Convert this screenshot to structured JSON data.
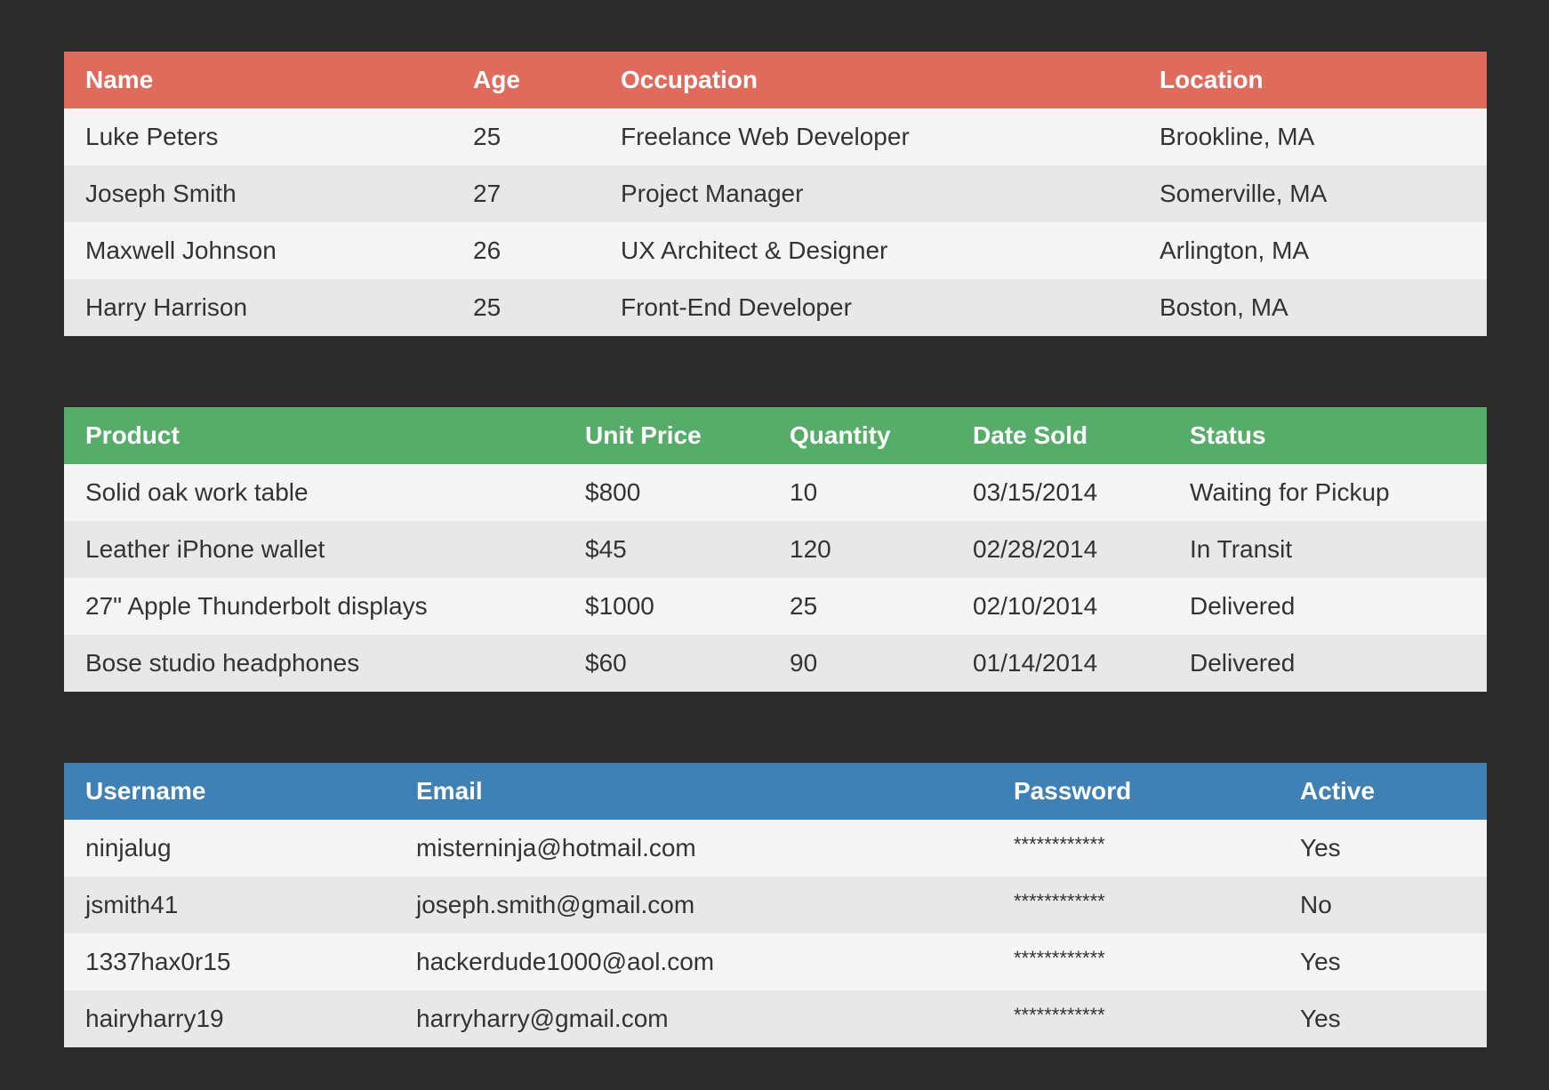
{
  "theme": {
    "background": "#2b2b2b",
    "people_header": "#e06b5c",
    "products_header": "#55ad69",
    "users_header": "#3f80b5",
    "row_light": "#f5f5f5",
    "row_dark": "#e8e8e8"
  },
  "people_table": {
    "headers": [
      "Name",
      "Age",
      "Occupation",
      "Location"
    ],
    "rows": [
      [
        "Luke Peters",
        "25",
        "Freelance Web Developer",
        "Brookline, MA"
      ],
      [
        "Joseph Smith",
        "27",
        "Project Manager",
        "Somerville, MA"
      ],
      [
        "Maxwell Johnson",
        "26",
        "UX Architect & Designer",
        "Arlington, MA"
      ],
      [
        "Harry Harrison",
        "25",
        "Front-End Developer",
        "Boston, MA"
      ]
    ]
  },
  "products_table": {
    "headers": [
      "Product",
      "Unit Price",
      "Quantity",
      "Date Sold",
      "Status"
    ],
    "rows": [
      [
        "Solid oak work table",
        "$800",
        "10",
        "03/15/2014",
        "Waiting for Pickup"
      ],
      [
        "Leather iPhone wallet",
        "$45",
        "120",
        "02/28/2014",
        "In Transit"
      ],
      [
        "27\" Apple Thunderbolt displays",
        "$1000",
        "25",
        "02/10/2014",
        "Delivered"
      ],
      [
        "Bose studio headphones",
        "$60",
        "90",
        "01/14/2014",
        "Delivered"
      ]
    ]
  },
  "users_table": {
    "headers": [
      "Username",
      "Email",
      "Password",
      "Active"
    ],
    "rows": [
      [
        "ninjalug",
        "misterninja@hotmail.com",
        "************",
        "Yes"
      ],
      [
        "jsmith41",
        "joseph.smith@gmail.com",
        "************",
        "No"
      ],
      [
        "1337hax0r15",
        "hackerdude1000@aol.com",
        "************",
        "Yes"
      ],
      [
        "hairyharry19",
        "harryharry@gmail.com",
        "************",
        "Yes"
      ]
    ]
  }
}
